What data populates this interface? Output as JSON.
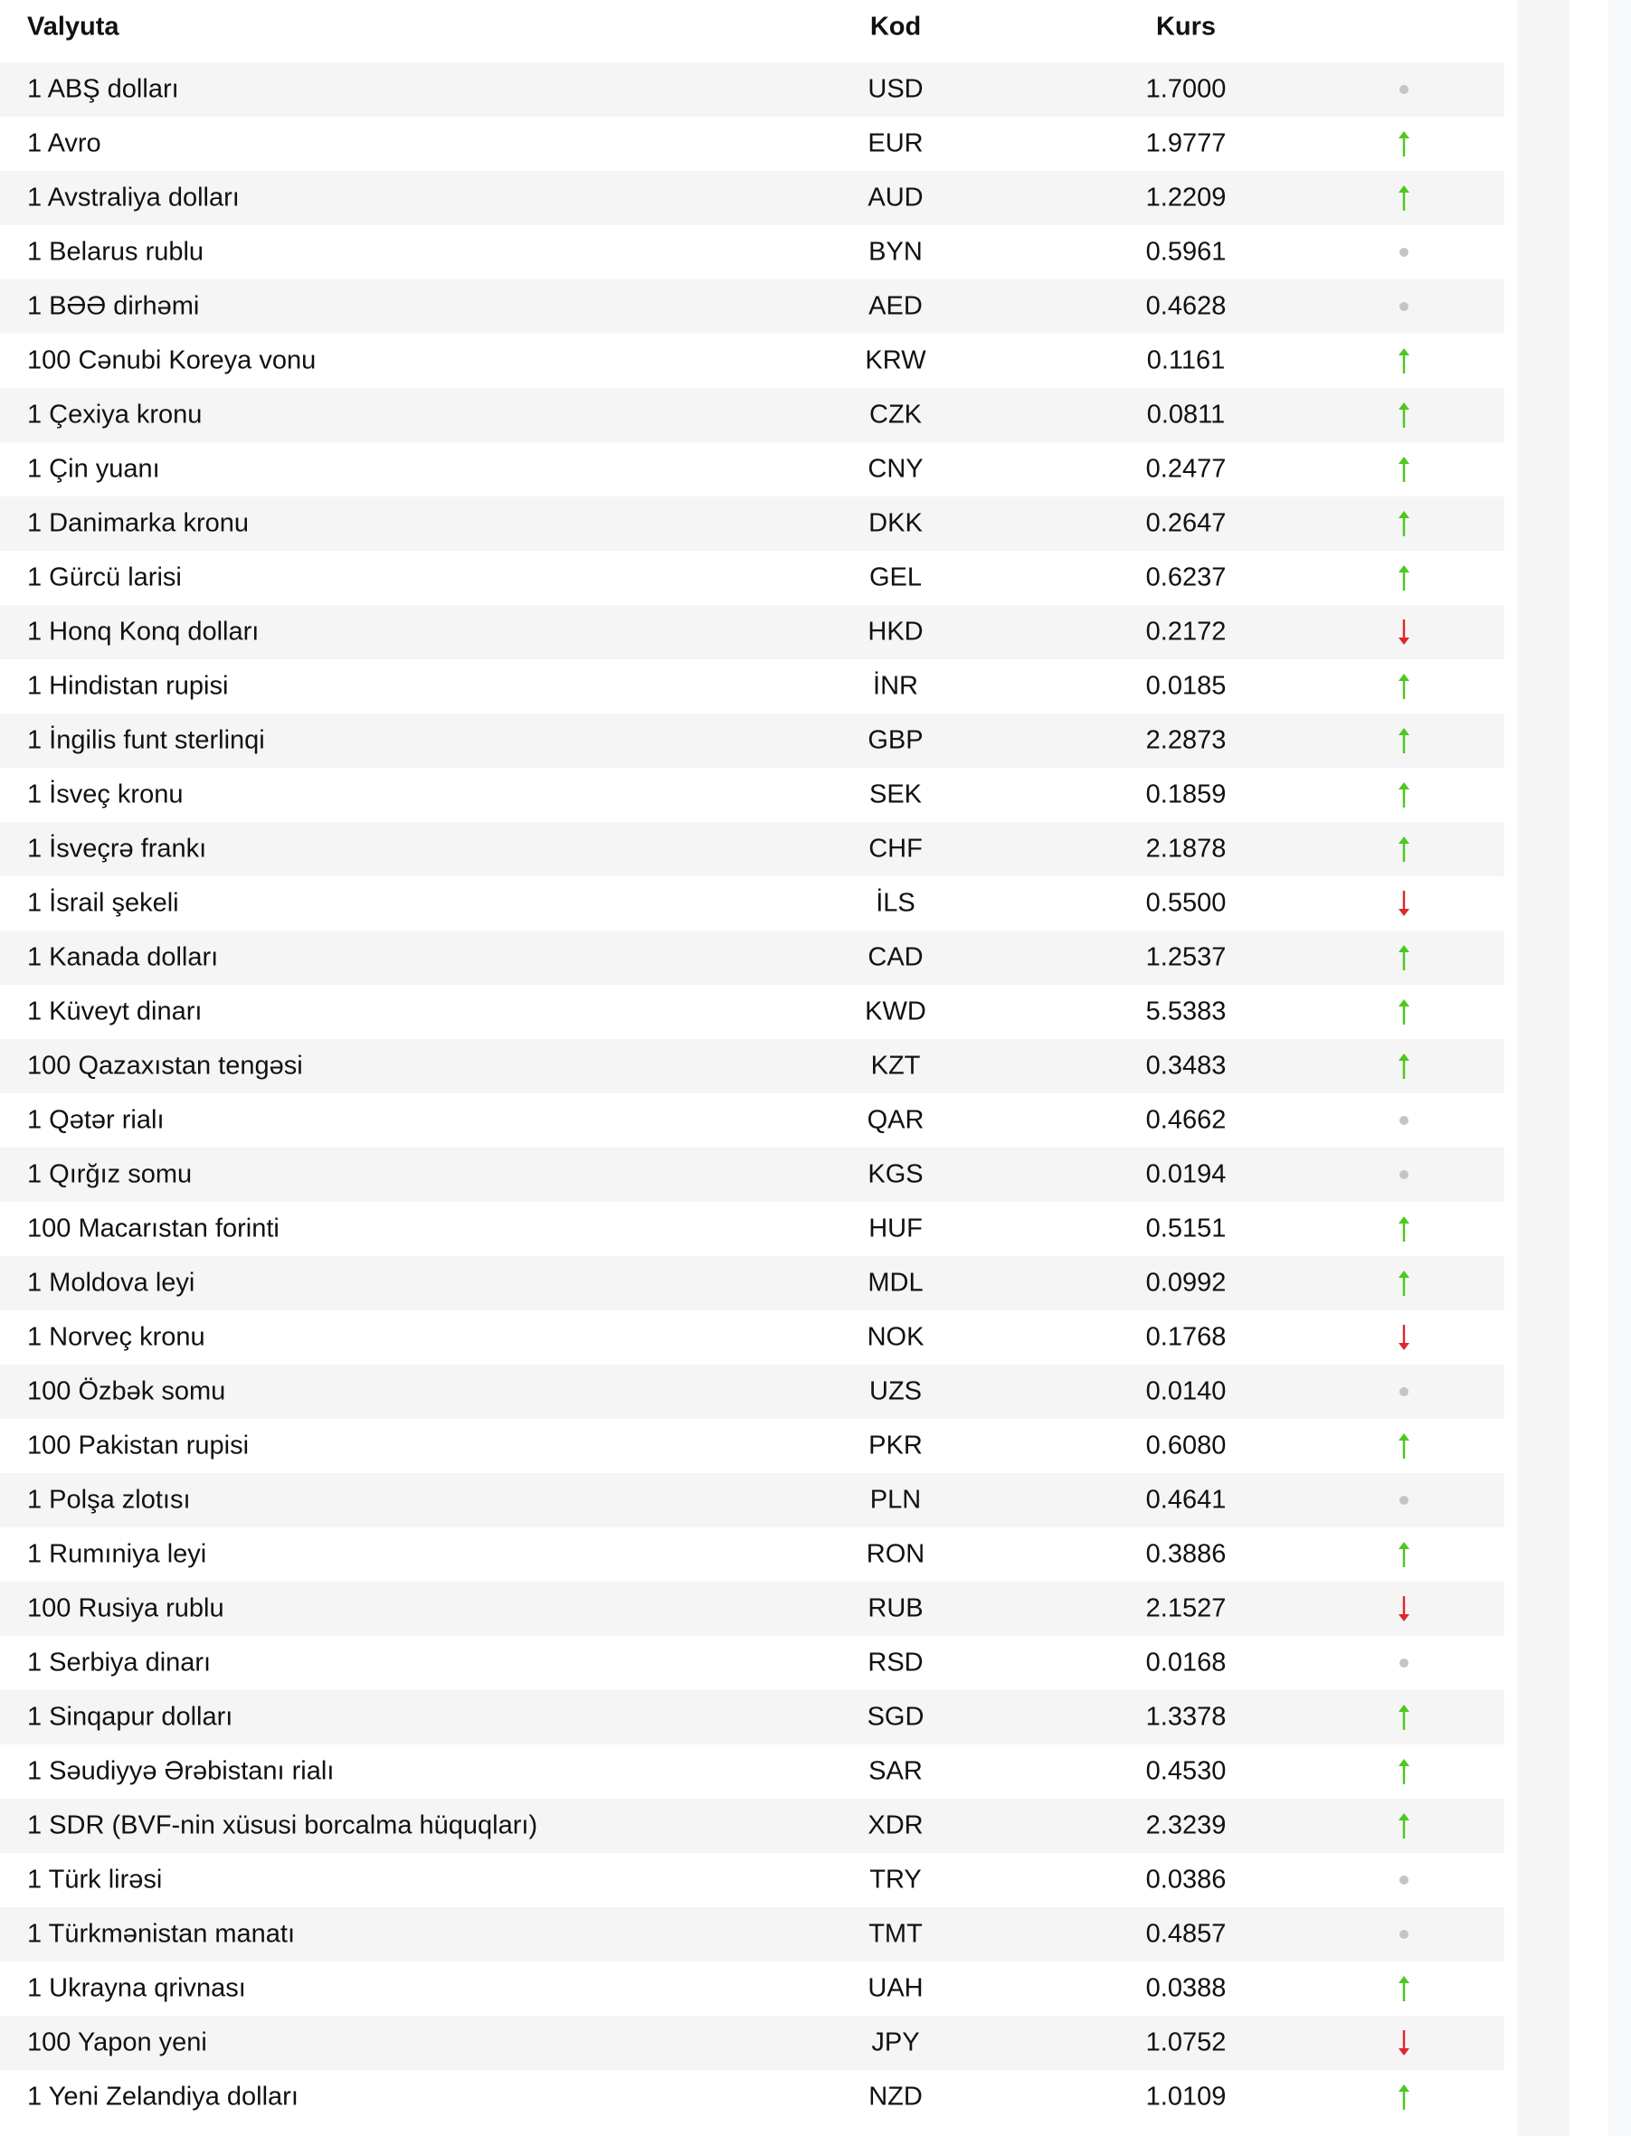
{
  "headers": {
    "currency": "Valyuta",
    "code": "Kod",
    "rate": "Kurs"
  },
  "colors": {
    "up": "#4cc81e",
    "down": "#e0262e",
    "same": "#c4c4c4",
    "stripe": "#f5f5f5"
  },
  "rows": [
    {
      "name": "1 ABŞ dolları",
      "code": "USD",
      "rate": "1.7000",
      "trend": "same"
    },
    {
      "name": "1 Avro",
      "code": "EUR",
      "rate": "1.9777",
      "trend": "up"
    },
    {
      "name": "1 Avstraliya dolları",
      "code": "AUD",
      "rate": "1.2209",
      "trend": "up"
    },
    {
      "name": "1 Belarus rublu",
      "code": "BYN",
      "rate": "0.5961",
      "trend": "same"
    },
    {
      "name": "1 BƏƏ dirhəmi",
      "code": "AED",
      "rate": "0.4628",
      "trend": "same"
    },
    {
      "name": "100 Cənubi Koreya vonu",
      "code": "KRW",
      "rate": "0.1161",
      "trend": "up"
    },
    {
      "name": "1 Çexiya kronu",
      "code": "CZK",
      "rate": "0.0811",
      "trend": "up"
    },
    {
      "name": "1 Çin yuanı",
      "code": "CNY",
      "rate": "0.2477",
      "trend": "up"
    },
    {
      "name": "1 Danimarka kronu",
      "code": "DKK",
      "rate": "0.2647",
      "trend": "up"
    },
    {
      "name": "1 Gürcü larisi",
      "code": "GEL",
      "rate": "0.6237",
      "trend": "up"
    },
    {
      "name": "1 Honq Konq dolları",
      "code": "HKD",
      "rate": "0.2172",
      "trend": "down"
    },
    {
      "name": "1 Hindistan rupisi",
      "code": "İNR",
      "rate": "0.0185",
      "trend": "up"
    },
    {
      "name": "1 İngilis funt sterlinqi",
      "code": "GBP",
      "rate": "2.2873",
      "trend": "up"
    },
    {
      "name": "1 İsveç kronu",
      "code": "SEK",
      "rate": "0.1859",
      "trend": "up"
    },
    {
      "name": "1 İsveçrə frankı",
      "code": "CHF",
      "rate": "2.1878",
      "trend": "up"
    },
    {
      "name": "1 İsrail şekeli",
      "code": "İLS",
      "rate": "0.5500",
      "trend": "down"
    },
    {
      "name": "1 Kanada dolları",
      "code": "CAD",
      "rate": "1.2537",
      "trend": "up"
    },
    {
      "name": "1 Küveyt dinarı",
      "code": "KWD",
      "rate": "5.5383",
      "trend": "up"
    },
    {
      "name": "100 Qazaxıstan tengəsi",
      "code": "KZT",
      "rate": "0.3483",
      "trend": "up"
    },
    {
      "name": "1 Qətər rialı",
      "code": "QAR",
      "rate": "0.4662",
      "trend": "same"
    },
    {
      "name": "1 Qırğız somu",
      "code": "KGS",
      "rate": "0.0194",
      "trend": "same"
    },
    {
      "name": "100 Macarıstan forinti",
      "code": "HUF",
      "rate": "0.5151",
      "trend": "up"
    },
    {
      "name": "1 Moldova leyi",
      "code": "MDL",
      "rate": "0.0992",
      "trend": "up"
    },
    {
      "name": "1 Norveç kronu",
      "code": "NOK",
      "rate": "0.1768",
      "trend": "down"
    },
    {
      "name": "100 Özbək somu",
      "code": "UZS",
      "rate": "0.0140",
      "trend": "same"
    },
    {
      "name": "100 Pakistan rupisi",
      "code": "PKR",
      "rate": "0.6080",
      "trend": "up"
    },
    {
      "name": "1 Polşa zlotısı",
      "code": "PLN",
      "rate": "0.4641",
      "trend": "same"
    },
    {
      "name": "1 Rumıniya leyi",
      "code": "RON",
      "rate": "0.3886",
      "trend": "up"
    },
    {
      "name": "100 Rusiya rublu",
      "code": "RUB",
      "rate": "2.1527",
      "trend": "down"
    },
    {
      "name": "1 Serbiya dinarı",
      "code": "RSD",
      "rate": "0.0168",
      "trend": "same"
    },
    {
      "name": "1 Sinqapur dolları",
      "code": "SGD",
      "rate": "1.3378",
      "trend": "up"
    },
    {
      "name": "1 Səudiyyə Ərəbistanı rialı",
      "code": "SAR",
      "rate": "0.4530",
      "trend": "up"
    },
    {
      "name": "1 SDR (BVF-nin xüsusi borcalma hüquqları)",
      "code": "XDR",
      "rate": "2.3239",
      "trend": "up"
    },
    {
      "name": "1 Türk lirəsi",
      "code": "TRY",
      "rate": "0.0386",
      "trend": "same"
    },
    {
      "name": "1 Türkmənistan manatı",
      "code": "TMT",
      "rate": "0.4857",
      "trend": "same"
    },
    {
      "name": "1 Ukrayna qrivnası",
      "code": "UAH",
      "rate": "0.0388",
      "trend": "up"
    },
    {
      "name": "100 Yapon yeni",
      "code": "JPY",
      "rate": "1.0752",
      "trend": "down"
    },
    {
      "name": "1 Yeni Zelandiya dolları",
      "code": "NZD",
      "rate": "1.0109",
      "trend": "up"
    }
  ]
}
